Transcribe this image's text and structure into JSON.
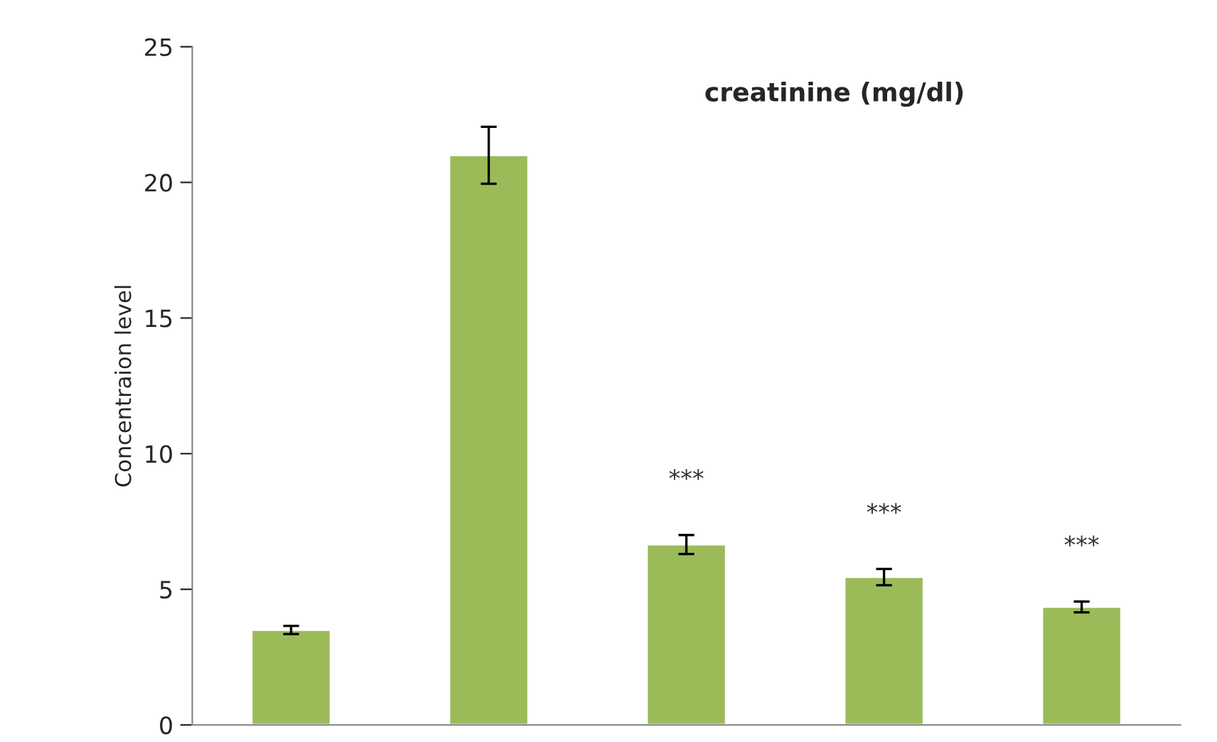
{
  "chart_data": {
    "type": "bar",
    "title": "creatinine (mg/dl)",
    "ylabel": "Concentraion level",
    "categories": [
      null,
      null,
      null,
      null,
      null
    ],
    "values": [
      3.5,
      21.0,
      6.65,
      5.45,
      4.35
    ],
    "errors": [
      0.15,
      1.05,
      0.35,
      0.3,
      0.2
    ],
    "value_labels": [
      null,
      null,
      "***",
      "***",
      "***"
    ],
    "color": "#9bbb59",
    "ylim": [
      0,
      25
    ],
    "yticks": [
      0,
      5,
      10,
      15,
      20,
      25
    ],
    "tick_labels": "y",
    "grid": false
  }
}
